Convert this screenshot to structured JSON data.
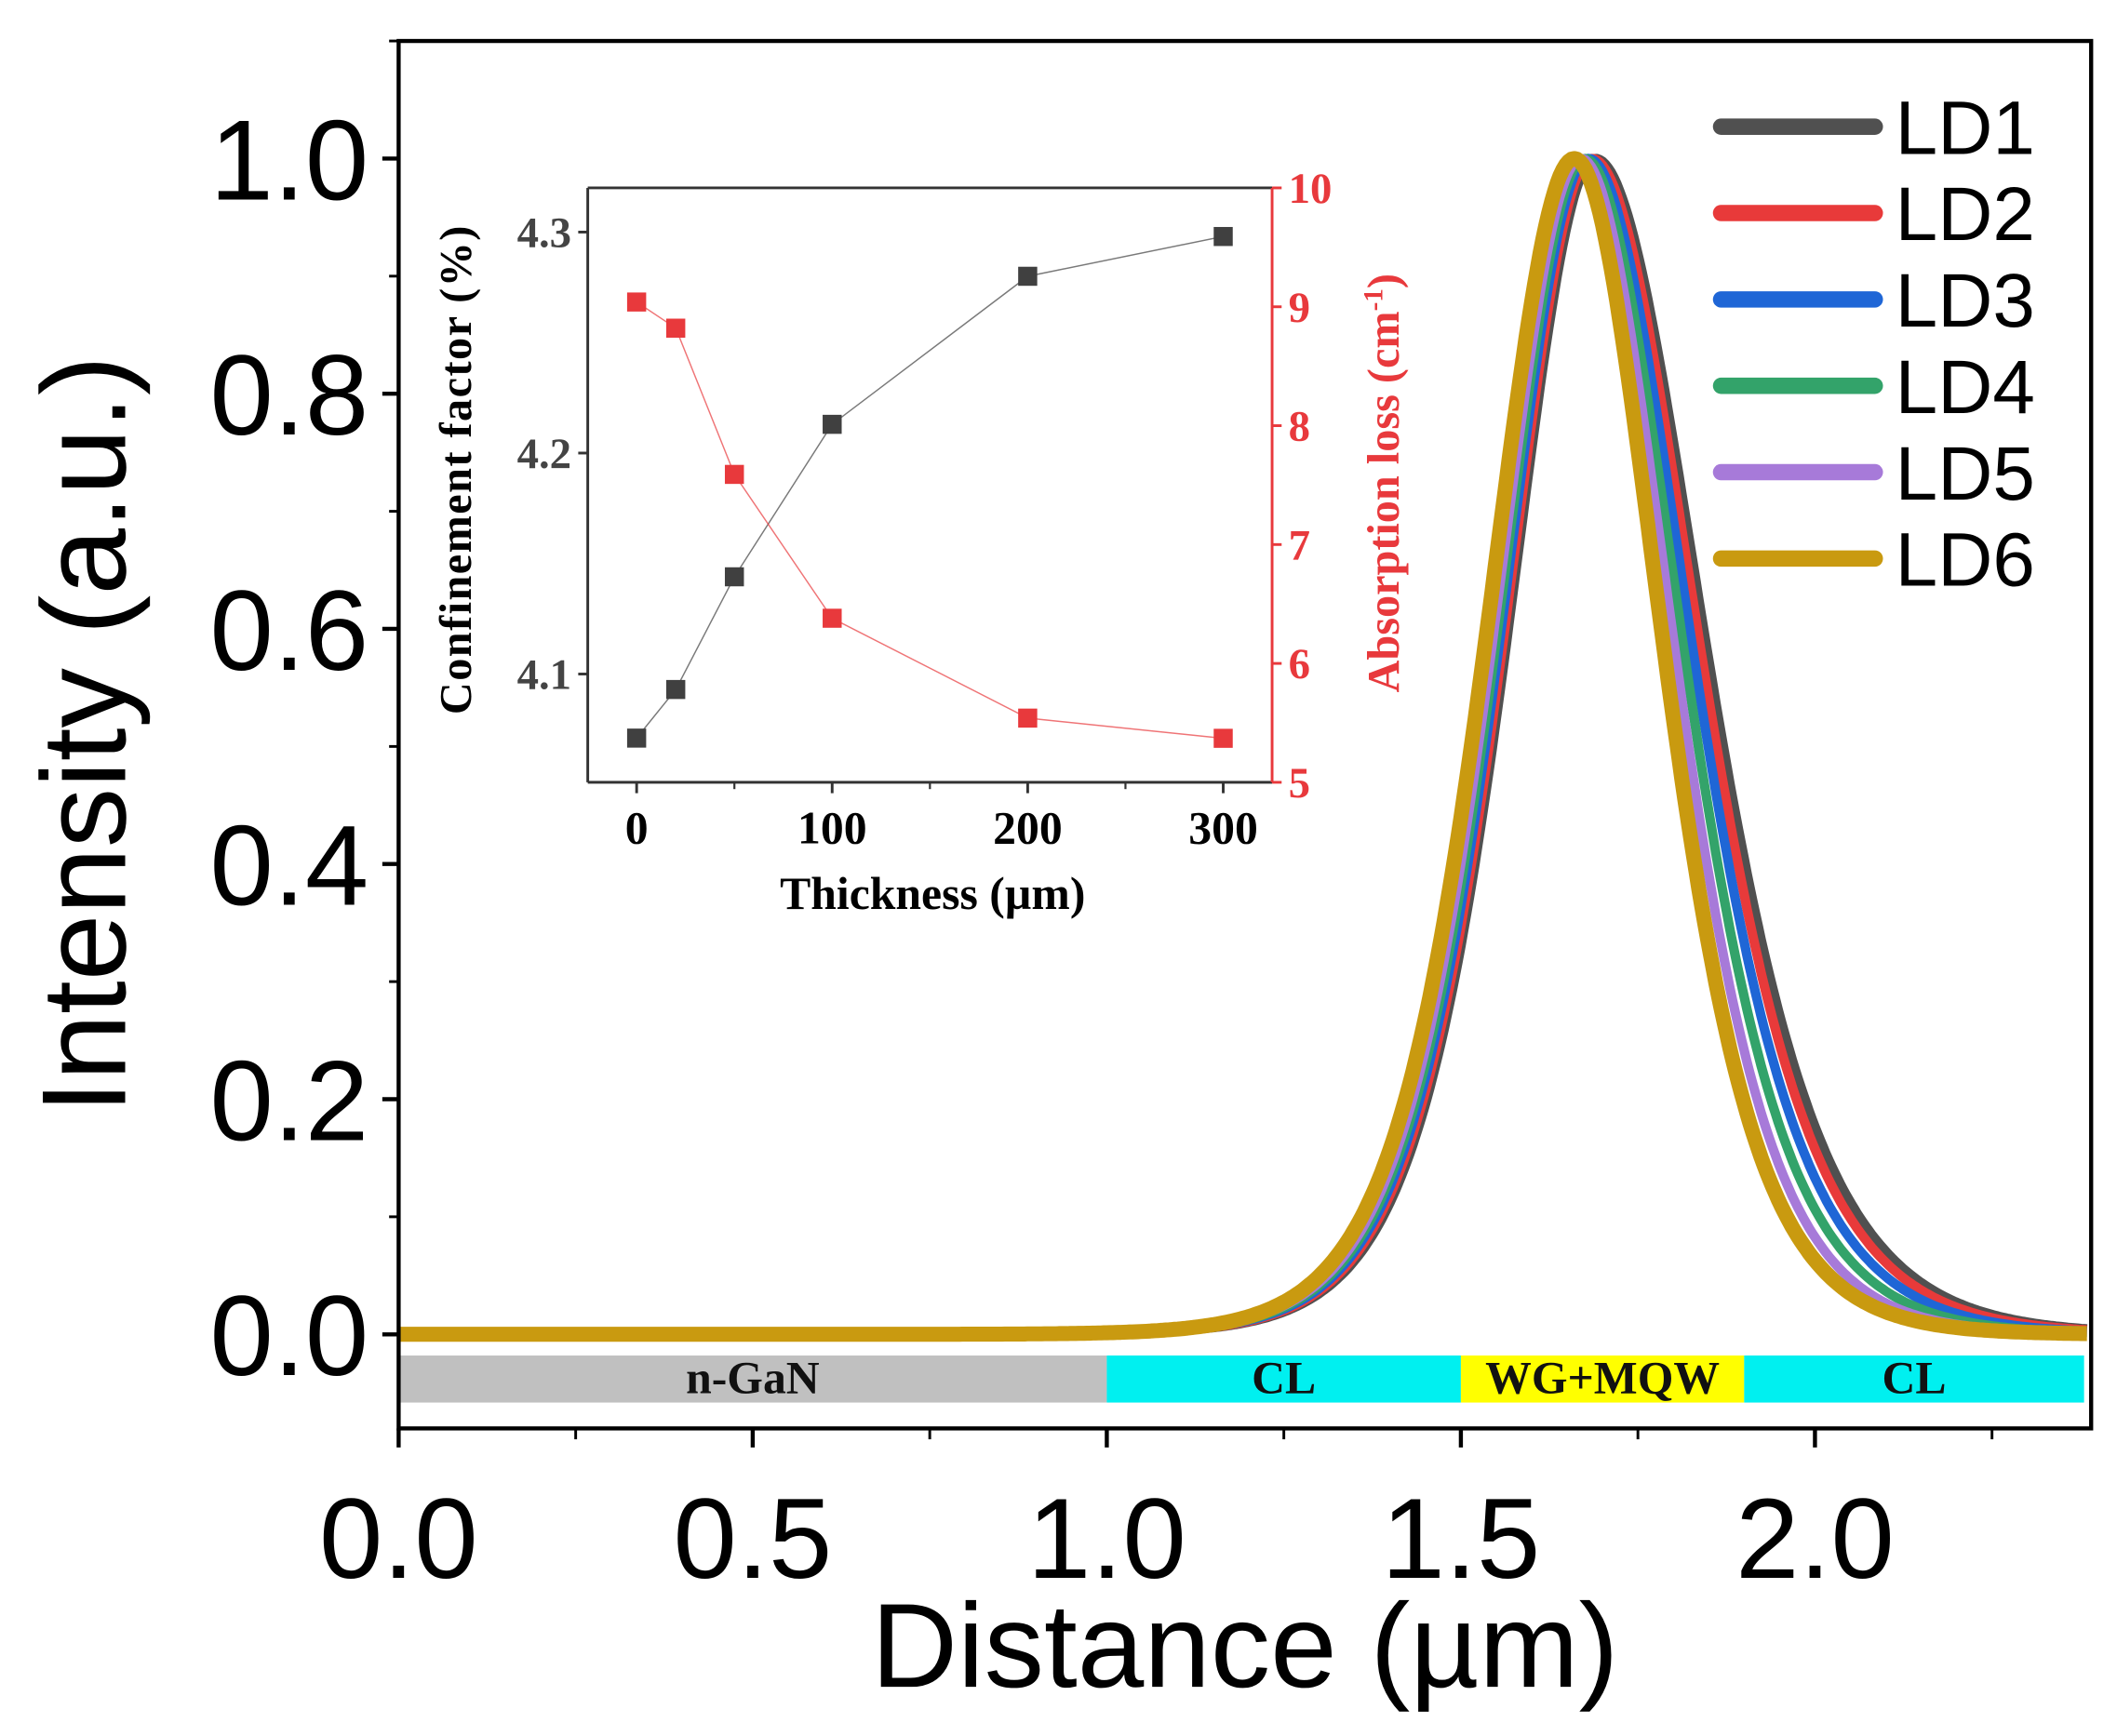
{
  "chart_data": [
    {
      "type": "line",
      "xlabel": "Distance (µm)",
      "ylabel": "Intensity (a.u.)",
      "xlim": [
        0,
        2.39
      ],
      "ylim": [
        -0.08,
        1.1
      ],
      "xticks": [
        "0.0",
        "0.5",
        "1.0",
        "1.5",
        "2.0"
      ],
      "yticks": [
        "0.0",
        "0.2",
        "0.4",
        "0.6",
        "0.8",
        "1.0"
      ],
      "legend_position": "top-right",
      "series": [
        {
          "name": "LD1",
          "color": "#505050",
          "peak": 1.69,
          "left_width": 0.165,
          "right_width": 0.205
        },
        {
          "name": "LD2",
          "color": "#e83a3a",
          "peak": 1.685,
          "left_width": 0.165,
          "right_width": 0.2
        },
        {
          "name": "LD3",
          "color": "#1f66d6",
          "peak": 1.68,
          "left_width": 0.165,
          "right_width": 0.192
        },
        {
          "name": "LD4",
          "color": "#33a36a",
          "peak": 1.675,
          "left_width": 0.165,
          "right_width": 0.182
        },
        {
          "name": "LD5",
          "color": "#a77ad9",
          "peak": 1.67,
          "left_width": 0.165,
          "right_width": 0.172
        },
        {
          "name": "LD6",
          "color": "#c99a10",
          "peak": 1.66,
          "left_width": 0.165,
          "right_width": 0.165
        }
      ],
      "layers": [
        {
          "label": "n-GaN",
          "from": 0.0,
          "to": 1.0,
          "color": "#c0c0c0"
        },
        {
          "label": "CL",
          "from": 1.0,
          "to": 1.5,
          "color": "#00f0f0"
        },
        {
          "label": "WG+MQW",
          "from": 1.5,
          "to": 1.9,
          "color": "#ffff00"
        },
        {
          "label": "CL",
          "from": 1.9,
          "to": 2.38,
          "color": "#00f0f0"
        }
      ]
    },
    {
      "type": "scatter",
      "inset": true,
      "xlabel": "Thickness (µm)",
      "ylabel_left": "Confinement factor (%)",
      "ylabel_right": "Absorption loss (cm",
      "ylabel_right_sup": "-1",
      "ylabel_right_end": ")",
      "xlim": [
        -25,
        325
      ],
      "ylim_left": [
        4.051,
        4.32
      ],
      "ylim_right": [
        5,
        10
      ],
      "xticks": [
        "0",
        "100",
        "200",
        "300"
      ],
      "yticks_left": [
        "4.1",
        "4.2",
        "4.3"
      ],
      "yticks_right": [
        "5",
        "6",
        "7",
        "8",
        "9",
        "10"
      ],
      "x": [
        0,
        20,
        50,
        100,
        200,
        300
      ],
      "series": [
        {
          "name": "Confinement factor",
          "axis": "left",
          "color": "#404040",
          "values": [
            4.071,
            4.093,
            4.144,
            4.213,
            4.28,
            4.298
          ]
        },
        {
          "name": "Absorption loss",
          "axis": "right",
          "color": "#e8393c",
          "values": [
            9.04,
            8.82,
            7.59,
            6.38,
            5.54,
            5.37
          ]
        }
      ]
    }
  ]
}
